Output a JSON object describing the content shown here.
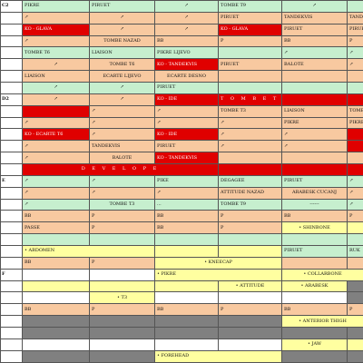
{
  "palette": {
    "g": "#c6efce",
    "o": "#f8c9a0",
    "r": "#e00000",
    "y": "#ffffa0",
    "d": "#808080",
    "w": "#ffffff"
  },
  "rows": [
    {
      "label": "C2",
      "cells": [
        {
          "t": "PIKRE",
          "c": "g"
        },
        {
          "t": "PIRUET",
          "c": "g"
        },
        {
          "t": "↗",
          "c": "g",
          "a": "c"
        },
        {
          "t": "TOMBE T9",
          "c": "g"
        },
        {
          "t": "↗",
          "c": "g",
          "a": "c"
        },
        {
          "t": "",
          "c": "g"
        }
      ]
    },
    {
      "label": "",
      "cells": [
        {
          "t": "↗",
          "c": "o"
        },
        {
          "t": "↗",
          "c": "o",
          "a": "c"
        },
        {
          "t": "↗",
          "c": "o",
          "a": "c"
        },
        {
          "t": "PIRUET",
          "c": "o"
        },
        {
          "t": "TANDEKVIS",
          "c": "o"
        },
        {
          "t": "TANDEKVIS",
          "c": "o"
        }
      ]
    },
    {
      "label": "",
      "cells": [
        {
          "t": "KO - GLAVA",
          "c": "r"
        },
        {
          "t": "↗",
          "c": "o",
          "a": "c"
        },
        {
          "t": "↗",
          "c": "o",
          "a": "c"
        },
        {
          "t": "KO - GLAVA",
          "c": "r"
        },
        {
          "t": "PIRUET",
          "c": "o"
        },
        {
          "t": "PIRUET",
          "c": "o"
        }
      ]
    },
    {
      "label": "",
      "cells": [
        {
          "t": "↗",
          "c": "o"
        },
        {
          "t": "TOMBE NAZAD",
          "c": "o",
          "a": "c"
        },
        {
          "t": "BB",
          "c": "o"
        },
        {
          "t": "P",
          "c": "o"
        },
        {
          "t": "BB",
          "c": "o"
        },
        {
          "t": "P",
          "c": "o"
        }
      ]
    },
    {
      "label": "",
      "cells": [
        {
          "t": "TOMBE T6",
          "c": "g"
        },
        {
          "t": "LIAISON",
          "c": "g"
        },
        {
          "t": "PIKRE LIJEVO",
          "c": "g"
        },
        {
          "t": "",
          "c": "g"
        },
        {
          "t": "↗",
          "c": "g"
        },
        {
          "t": "↗",
          "c": "g"
        }
      ]
    },
    {
      "label": "",
      "cells": [
        {
          "t": "↗",
          "c": "o",
          "a": "c"
        },
        {
          "t": "TOMBE T6",
          "c": "o",
          "a": "c"
        },
        {
          "t": "KO - TANDEKVIS",
          "c": "r"
        },
        {
          "t": "PIRUET",
          "c": "o"
        },
        {
          "t": "BALOTE",
          "c": "o"
        },
        {
          "t": "↗",
          "c": "o"
        }
      ]
    },
    {
      "label": "",
      "cells": [
        {
          "t": "LIAISON",
          "c": "o"
        },
        {
          "t": "ECARTE LIJEVO",
          "c": "o",
          "a": "c"
        },
        {
          "t": "ECARTE DESNO",
          "c": "o",
          "a": "c"
        },
        {
          "t": "",
          "c": "o"
        },
        {
          "t": "",
          "c": "o"
        },
        {
          "t": "",
          "c": "o"
        }
      ]
    },
    {
      "label": "",
      "cells": [
        {
          "t": "↗",
          "c": "g",
          "a": "c"
        },
        {
          "t": "↗",
          "c": "g",
          "a": "c"
        },
        {
          "t": "PIRUET",
          "c": "g"
        },
        {
          "t": "",
          "c": "g"
        },
        {
          "t": "",
          "c": "g"
        },
        {
          "t": "",
          "c": "g"
        }
      ]
    },
    {
      "label": "D2",
      "cells": [
        {
          "t": "↗",
          "c": "o",
          "a": "c"
        },
        {
          "t": "↗",
          "c": "o",
          "a": "c"
        },
        {
          "t": "KO - IDE",
          "c": "r"
        },
        {
          "t": "T O M B E T",
          "c": "r",
          "cls": "spaced"
        },
        {
          "t": "",
          "c": "r"
        },
        {
          "t": "",
          "c": "r"
        }
      ]
    },
    {
      "label": "",
      "cells": [
        {
          "t": "",
          "c": "r"
        },
        {
          "t": "↗",
          "c": "o"
        },
        {
          "t": "↗",
          "c": "o"
        },
        {
          "t": "TOMBE T3",
          "c": "o"
        },
        {
          "t": "LIAISON",
          "c": "o"
        },
        {
          "t": "TOMBE T3",
          "c": "o"
        }
      ]
    },
    {
      "label": "",
      "cells": [
        {
          "t": "↗",
          "c": "o"
        },
        {
          "t": "↗",
          "c": "o"
        },
        {
          "t": "↗",
          "c": "o"
        },
        {
          "t": "↗",
          "c": "o"
        },
        {
          "t": "PIKRE",
          "c": "o"
        },
        {
          "t": "PIKRE",
          "c": "o"
        }
      ]
    },
    {
      "label": "",
      "cells": [
        {
          "t": "KO - ECARTE T6",
          "c": "r"
        },
        {
          "t": "↗",
          "c": "o"
        },
        {
          "t": "KO - IDE",
          "c": "r"
        },
        {
          "t": "↗",
          "c": "o"
        },
        {
          "t": "↗",
          "c": "o"
        },
        {
          "t": "",
          "c": "r"
        }
      ]
    },
    {
      "label": "",
      "cells": [
        {
          "t": "↗",
          "c": "o"
        },
        {
          "t": "TANDEKVIS",
          "c": "o"
        },
        {
          "t": "PIRUET",
          "c": "o"
        },
        {
          "t": "↗",
          "c": "o"
        },
        {
          "t": "↗",
          "c": "o"
        },
        {
          "t": "",
          "c": "r"
        }
      ]
    },
    {
      "label": "",
      "cells": [
        {
          "t": "↗",
          "c": "o"
        },
        {
          "t": "BALOTE",
          "c": "o",
          "a": "c"
        },
        {
          "t": "KO - TANDEKVIS",
          "c": "r"
        },
        {
          "t": "",
          "c": "o"
        },
        {
          "t": "",
          "c": "o"
        },
        {
          "t": "",
          "c": "o"
        }
      ]
    },
    {
      "label": "",
      "cells": [
        {
          "t": "D E V E L O P E",
          "c": "r",
          "span": 3,
          "a": "c",
          "cls": "spaced"
        },
        {
          "t": "",
          "c": "r"
        },
        {
          "t": "",
          "c": "r"
        },
        {
          "t": "",
          "c": "r"
        }
      ]
    },
    {
      "label": "E",
      "cells": [
        {
          "t": "↗",
          "c": "g"
        },
        {
          "t": "↗",
          "c": "g"
        },
        {
          "t": "PIKE",
          "c": "g"
        },
        {
          "t": "DEGAGEE",
          "c": "g"
        },
        {
          "t": "PIRUET",
          "c": "g"
        },
        {
          "t": "↗",
          "c": "g"
        }
      ]
    },
    {
      "label": "",
      "cells": [
        {
          "t": "↗",
          "c": "o"
        },
        {
          "t": "↗",
          "c": "o"
        },
        {
          "t": "↗",
          "c": "o"
        },
        {
          "t": "ATTITUDE NAZAD",
          "c": "o"
        },
        {
          "t": "ARABESK CUCANJ",
          "c": "o",
          "a": "c"
        },
        {
          "t": "↗",
          "c": "o"
        }
      ]
    },
    {
      "label": "",
      "cells": [
        {
          "t": "↗",
          "c": "g"
        },
        {
          "t": "TOMBE T3",
          "c": "g",
          "a": "c"
        },
        {
          "t": "...",
          "c": "g"
        },
        {
          "t": "TOMBE T9",
          "c": "g"
        },
        {
          "t": "------",
          "c": "g",
          "a": "c"
        },
        {
          "t": "↗",
          "c": "g"
        }
      ]
    },
    {
      "label": "",
      "cells": [
        {
          "t": "BB",
          "c": "o"
        },
        {
          "t": "P",
          "c": "o"
        },
        {
          "t": "BB",
          "c": "o"
        },
        {
          "t": "P",
          "c": "o"
        },
        {
          "t": "BB",
          "c": "o"
        },
        {
          "t": "P",
          "c": "o"
        }
      ]
    },
    {
      "label": "",
      "cells": [
        {
          "t": "PASSE",
          "c": "o"
        },
        {
          "t": "P",
          "c": "o"
        },
        {
          "t": "BB",
          "c": "o"
        },
        {
          "t": "P",
          "c": "o"
        },
        {
          "t": "• SHINBONE",
          "c": "y",
          "a": "c"
        },
        {
          "t": "",
          "c": "y"
        }
      ]
    },
    {
      "label": "",
      "cells": [
        {
          "t": "",
          "c": "g"
        },
        {
          "t": "",
          "c": "g"
        },
        {
          "t": "",
          "c": "g"
        },
        {
          "t": "",
          "c": "g"
        },
        {
          "t": "",
          "c": "g"
        },
        {
          "t": "",
          "c": "g"
        }
      ]
    },
    {
      "label": "",
      "cells": [
        {
          "t": "• ABDOMEN",
          "c": "y",
          "span": 2,
          "a": "l"
        },
        {
          "t": "",
          "c": "y"
        },
        {
          "t": "",
          "c": "y"
        },
        {
          "t": "PIRUET",
          "c": "g"
        },
        {
          "t": "RUK",
          "c": "g"
        }
      ]
    },
    {
      "label": "",
      "cells": [
        {
          "t": "BB",
          "c": "o"
        },
        {
          "t": "P",
          "c": "o"
        },
        {
          "t": "• KNEECAP",
          "c": "y",
          "span": 2,
          "a": "c"
        },
        {
          "t": "",
          "c": "o"
        },
        {
          "t": "",
          "c": "o"
        }
      ]
    },
    {
      "label": "F",
      "cells": [
        {
          "t": "",
          "c": "w"
        },
        {
          "t": "",
          "c": "w"
        },
        {
          "t": "• PIKRE",
          "c": "y",
          "span": 2,
          "a": "l"
        },
        {
          "t": "• COLLARBONE",
          "c": "y",
          "span": 2,
          "a": "c"
        }
      ]
    },
    {
      "label": "",
      "cells": [
        {
          "t": "",
          "c": "y"
        },
        {
          "t": "",
          "c": "y"
        },
        {
          "t": "",
          "c": "y"
        },
        {
          "t": "• ATTITUDE",
          "c": "y",
          "a": "c"
        },
        {
          "t": "• ARABESK",
          "c": "y",
          "a": "c"
        },
        {
          "t": "",
          "c": "d"
        }
      ]
    },
    {
      "label": "",
      "cells": [
        {
          "t": "",
          "c": "w"
        },
        {
          "t": "• T3",
          "c": "y",
          "a": "c"
        },
        {
          "t": "",
          "c": "w"
        },
        {
          "t": "",
          "c": "w"
        },
        {
          "t": "",
          "c": "w"
        },
        {
          "t": "",
          "c": "d"
        }
      ]
    },
    {
      "label": "",
      "cells": [
        {
          "t": "BB",
          "c": "o"
        },
        {
          "t": "P",
          "c": "o"
        },
        {
          "t": "BB",
          "c": "o"
        },
        {
          "t": "P",
          "c": "o"
        },
        {
          "t": "BB",
          "c": "o"
        },
        {
          "t": "P",
          "c": "o"
        }
      ]
    },
    {
      "label": "",
      "cells": [
        {
          "t": "",
          "c": "d"
        },
        {
          "t": "",
          "c": "d"
        },
        {
          "t": "",
          "c": "d"
        },
        {
          "t": "",
          "c": "d"
        },
        {
          "t": "• ANTERIOR THIGH",
          "c": "y",
          "span": 2,
          "a": "c"
        }
      ]
    },
    {
      "label": "",
      "cells": [
        {
          "t": "",
          "c": "d"
        },
        {
          "t": "",
          "c": "d"
        },
        {
          "t": "",
          "c": "d"
        },
        {
          "t": "",
          "c": "d"
        },
        {
          "t": "",
          "c": "d"
        },
        {
          "t": "",
          "c": "d"
        }
      ]
    },
    {
      "label": "",
      "cells": [
        {
          "t": "",
          "c": "w"
        },
        {
          "t": "",
          "c": "w"
        },
        {
          "t": "",
          "c": "w"
        },
        {
          "t": "",
          "c": "w"
        },
        {
          "t": "• JAW",
          "c": "y",
          "a": "c"
        },
        {
          "t": "",
          "c": "y"
        }
      ]
    },
    {
      "label": "",
      "cells": [
        {
          "t": "",
          "c": "d"
        },
        {
          "t": "",
          "c": "d"
        },
        {
          "t": "• FOREHEAD",
          "c": "y",
          "span": 2,
          "a": "l"
        },
        {
          "t": "",
          "c": "d"
        },
        {
          "t": "",
          "c": "d"
        }
      ]
    }
  ]
}
